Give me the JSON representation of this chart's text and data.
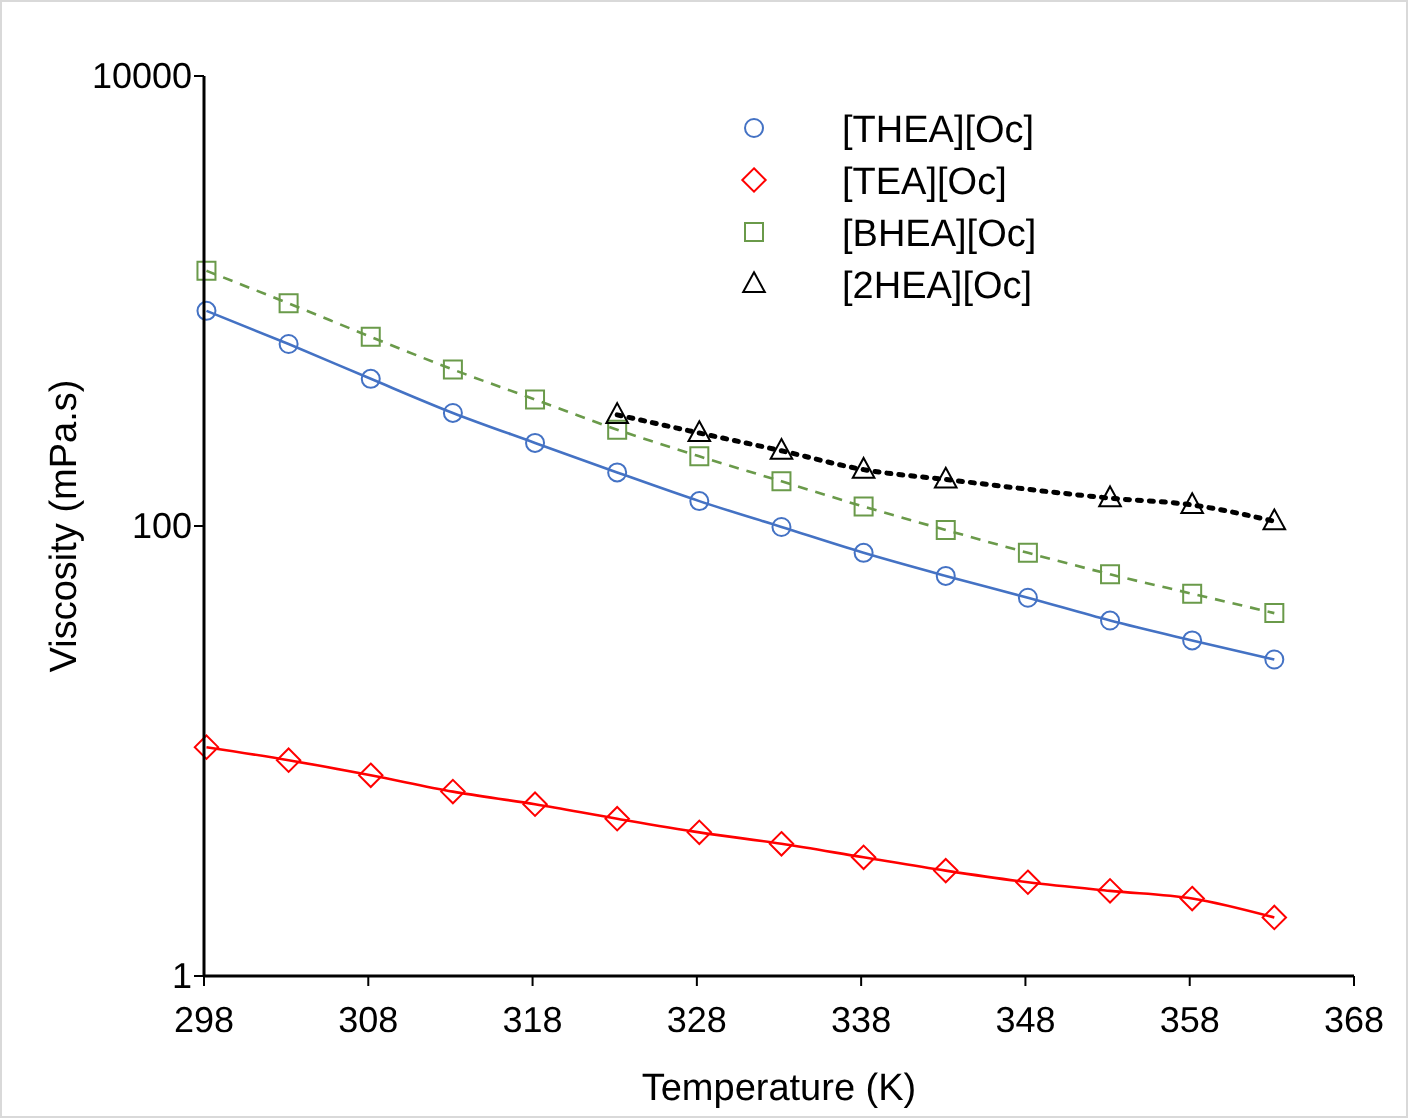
{
  "chart_data": {
    "type": "line",
    "xlabel": "Temperature (K)",
    "ylabel": "Viscosity (mPa.s)",
    "log": "y",
    "xlim": [
      298,
      368
    ],
    "xticks": [
      298,
      308,
      318,
      328,
      338,
      348,
      358,
      368
    ],
    "ylim": [
      1,
      10000
    ],
    "yticks": [
      1,
      100,
      10000
    ],
    "grid": false,
    "legend": "top right",
    "series": [
      {
        "name": "[THEA][Oc]",
        "color": "#4472c4",
        "marker": "circle",
        "line_style": "solid",
        "x": [
          298.15,
          303.15,
          308.15,
          313.15,
          318.15,
          323.15,
          328.15,
          333.15,
          338.15,
          343.15,
          348.15,
          353.15,
          358.15,
          363.15
        ],
        "values": [
          904,
          644,
          451,
          318,
          234,
          173,
          129,
          99,
          76,
          60,
          48,
          38,
          31,
          25.5
        ]
      },
      {
        "name": "[TEA][Oc]",
        "color": "#ff0000",
        "marker": "diamond",
        "line_style": "solid",
        "x": [
          298.15,
          303.15,
          308.15,
          313.15,
          318.15,
          323.15,
          328.15,
          333.15,
          338.15,
          343.15,
          348.15,
          353.15,
          358.15,
          363.15
        ],
        "values": [
          10.4,
          9.1,
          7.8,
          6.6,
          5.8,
          5.0,
          4.35,
          3.87,
          3.37,
          2.94,
          2.61,
          2.39,
          2.21,
          1.82
        ]
      },
      {
        "name": "[BHEA][Oc]",
        "color": "#6a9a4a",
        "marker": "square",
        "line_style": "dashed",
        "x": [
          298.15,
          303.15,
          308.15,
          313.15,
          318.15,
          323.15,
          328.15,
          333.15,
          338.15,
          343.15,
          348.15,
          353.15,
          358.15,
          363.15
        ],
        "values": [
          1362,
          976,
          693,
          496,
          365,
          268,
          204,
          158,
          122,
          96,
          76,
          61,
          50,
          41
        ]
      },
      {
        "name": "[2HEA][Oc]",
        "color": "#000000",
        "marker": "triangle",
        "line_style": "dotted",
        "x": [
          323.15,
          328.15,
          333.15,
          338.15,
          343.15,
          353.15,
          358.15,
          363.15
        ],
        "values": [
          312,
          259,
          216,
          178,
          161,
          133,
          124,
          105
        ]
      }
    ]
  }
}
